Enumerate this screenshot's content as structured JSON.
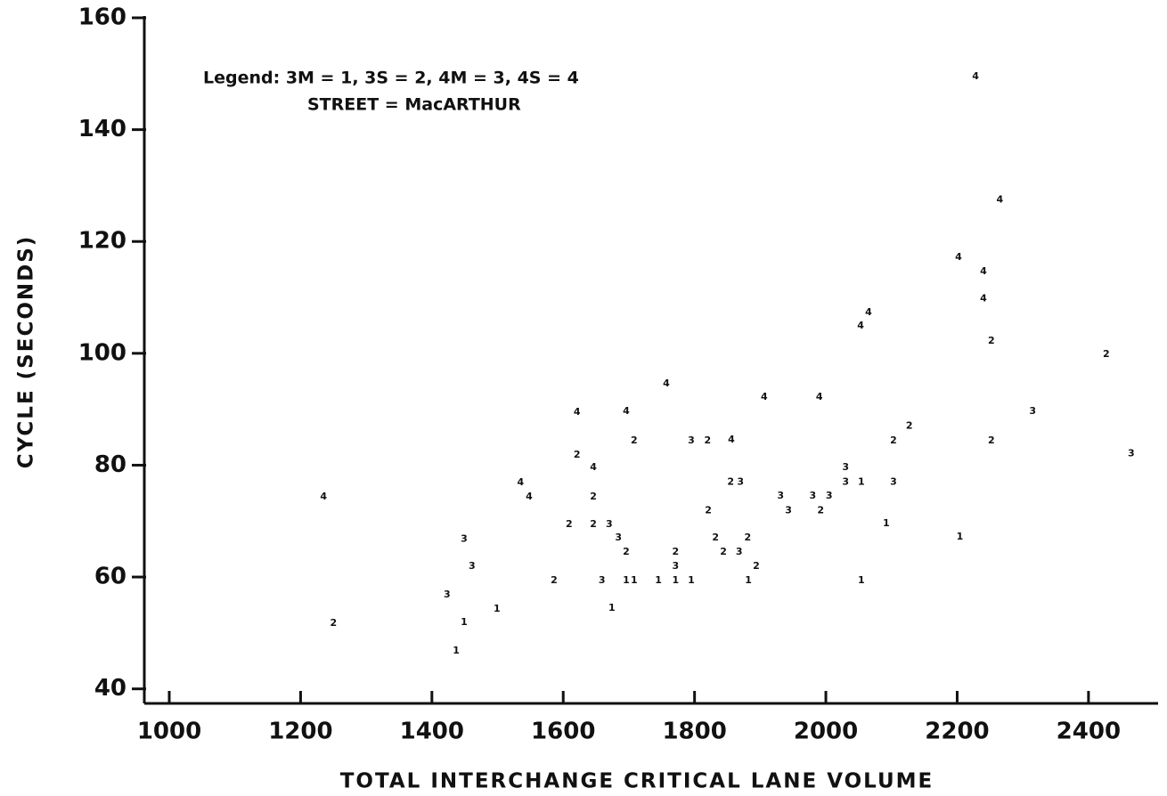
{
  "chart_data": {
    "type": "scatter",
    "xlabel": "TOTAL INTERCHANGE CRITICAL LANE VOLUME",
    "ylabel": "CYCLE (SECONDS)",
    "annotations": [
      "Legend: 3M = 1, 3S = 2, 4M = 3, 4S = 4",
      "STREET = MacARTHUR"
    ],
    "xlim": [
      962,
      2506
    ],
    "ylim": [
      37.4,
      160
    ],
    "xticks": [
      1000,
      1200,
      1400,
      1600,
      1800,
      2000,
      2200,
      2400
    ],
    "yticks": [
      40,
      60,
      80,
      100,
      120,
      140,
      160
    ],
    "color": "#111111",
    "series": [
      {
        "name": "1",
        "x": [
          1437,
          1449,
          1499,
          1674,
          1696,
          1708,
          1745,
          1771,
          1795,
          1882,
          2054,
          2054,
          2092,
          2204
        ],
        "values": [
          46.8,
          51.9,
          54.3,
          54.4,
          59.4,
          59.4,
          59.4,
          59.4,
          59.4,
          59.4,
          77,
          59.4,
          69.6,
          67.2
        ]
      },
      {
        "name": "2",
        "x": [
          1250,
          1586,
          1609,
          1621,
          1646,
          1646,
          1696,
          1708,
          1771,
          1820,
          1821,
          1832,
          1844,
          1855,
          1881,
          1894,
          1992,
          2103,
          2127,
          2252,
          2252,
          2427
        ],
        "values": [
          51.7,
          59.4,
          69.4,
          81.8,
          74.3,
          69.4,
          64.5,
          84.4,
          64.5,
          84.4,
          71.9,
          67,
          64.5,
          77,
          67,
          61.9,
          71.9,
          84.4,
          87,
          102.2,
          84.4,
          99.8
        ]
      },
      {
        "name": "3",
        "x": [
          1423,
          1449,
          1461,
          1670,
          1684,
          1659,
          1771,
          1795,
          1870,
          1868,
          1931,
          1943,
          1980,
          2005,
          2030,
          2030,
          2103,
          2315,
          2465
        ],
        "values": [
          56.8,
          66.8,
          61.9,
          69.4,
          67,
          59.4,
          61.9,
          84.4,
          77,
          64.5,
          74.5,
          71.9,
          74.5,
          74.5,
          79.6,
          77,
          77,
          89.6,
          82.1
        ]
      },
      {
        "name": "4",
        "x": [
          1235,
          1535,
          1548,
          1621,
          1646,
          1696,
          1757,
          1856,
          1906,
          1990,
          2053,
          2065,
          2202,
          2240,
          2240,
          2228,
          2265
        ],
        "values": [
          74.3,
          76.9,
          74.3,
          89.5,
          79.6,
          89.6,
          94.6,
          84.5,
          92.2,
          92.2,
          104.9,
          107.3,
          117.2,
          114.6,
          109.8,
          149.5,
          127.4
        ]
      }
    ]
  }
}
